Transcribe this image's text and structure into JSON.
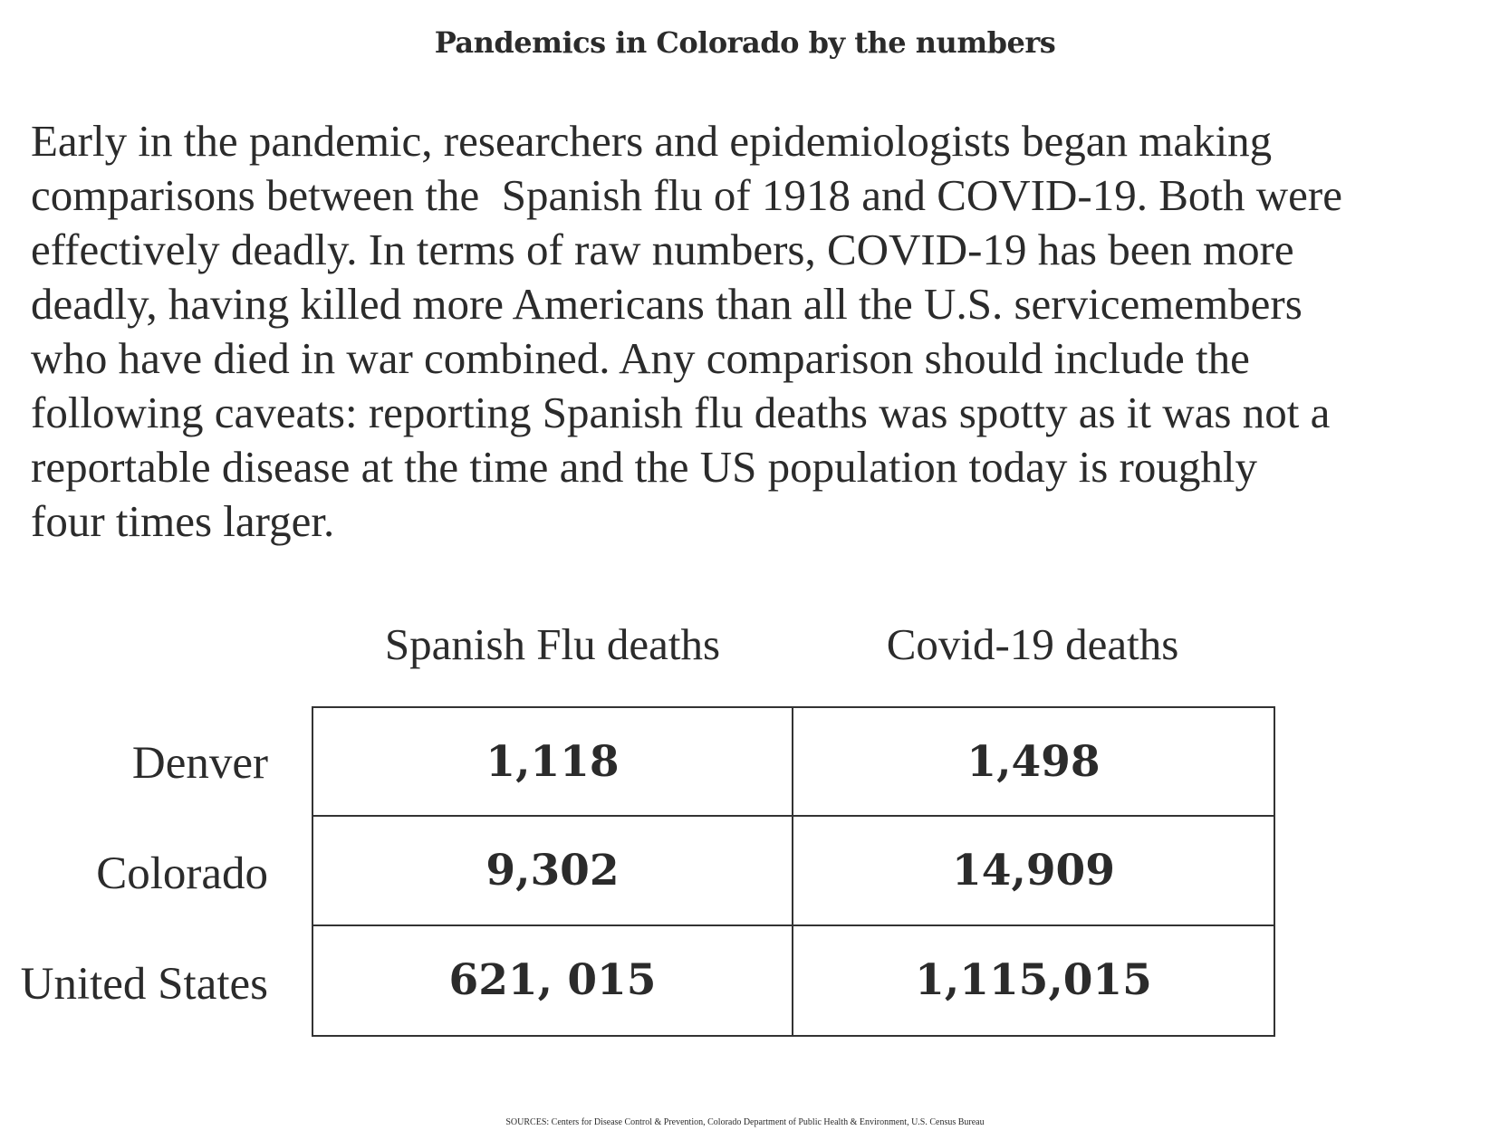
{
  "title": "Pandemics in Colorado by the numbers",
  "intro_lines": [
    "Early in the pandemic, researchers and epidemiologists began making",
    "comparisons between the  Spanish flu of 1918 and COVID-19. Both were",
    "effectively deadly. In terms of raw numbers, COVID-19 has been more",
    "deadly, having killed more Americans than all the U.S. servicemembers",
    "who have died in war combined. Any comparison should include the",
    "following caveats: reporting Spanish flu deaths was spotty as it was not a",
    "reportable disease at the time and the US population today is roughly",
    "four times larger."
  ],
  "chart_data": {
    "type": "table",
    "columns": [
      "Spanish Flu deaths",
      "Covid-19 deaths"
    ],
    "rows": [
      {
        "label": "Denver",
        "cells": [
          "1,118",
          "1,498"
        ],
        "values": [
          1118,
          1498
        ]
      },
      {
        "label": "Colorado",
        "cells": [
          "9,302",
          "14,909"
        ],
        "values": [
          9302,
          14909
        ]
      },
      {
        "label": "United States",
        "cells": [
          "621, 015",
          "1,115,015"
        ],
        "values": [
          621015,
          1115015
        ]
      }
    ]
  },
  "sources": "SOURCES: Centers for Disease Control & Prevention, Colorado Department of Public Health & Environment, U.S. Census Bureau",
  "colors": {
    "text": "#2b2b2b",
    "border": "#333333",
    "background": "#ffffff"
  }
}
